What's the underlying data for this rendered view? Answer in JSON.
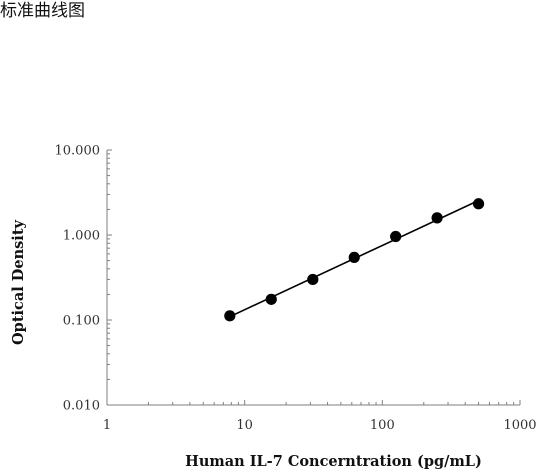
{
  "page": {
    "header_title": "标准曲线图"
  },
  "chart_data": {
    "type": "scatter",
    "title": "",
    "xlabel": "Human IL-7 Concerntration (pg/mL)",
    "ylabel": "Optical Density",
    "xscale": "log",
    "yscale": "log",
    "xlim": [
      1,
      1000
    ],
    "ylim": [
      0.01,
      10
    ],
    "x_ticks": [
      1,
      10,
      100,
      1000
    ],
    "x_tick_labels": [
      "1",
      "10",
      "100",
      "1000"
    ],
    "y_ticks": [
      0.01,
      0.1,
      1,
      10
    ],
    "y_tick_labels": [
      "0.010",
      "0.100",
      "1.000",
      "10.000"
    ],
    "grid": false,
    "legend": "none",
    "trendline": true,
    "series": [
      {
        "x": [
          7.8,
          15.6,
          31.25,
          62.5,
          125,
          250,
          500
        ],
        "y": [
          0.112,
          0.175,
          0.3,
          0.545,
          0.96,
          1.59,
          2.33
        ]
      }
    ],
    "colors": {
      "marker": "#000000",
      "line": "#000000",
      "axis": "#7f7f7f"
    }
  }
}
